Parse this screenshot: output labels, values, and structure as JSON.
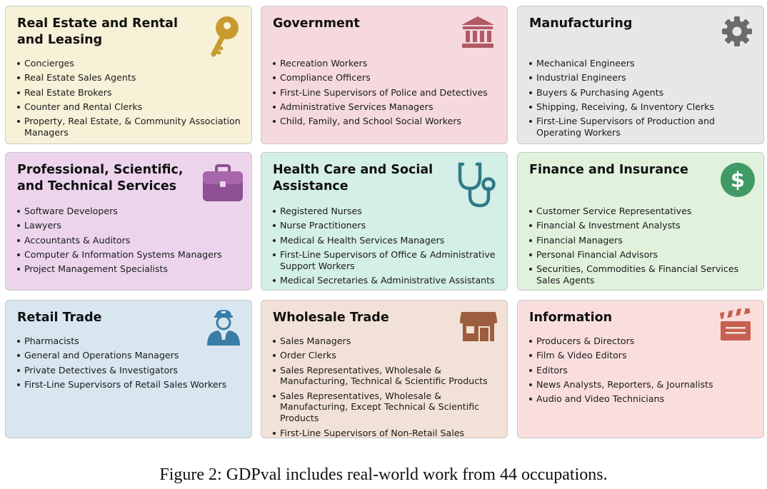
{
  "cards": [
    {
      "title": "Real Estate and Rental and Leasing",
      "icon": "key-icon",
      "background": "#f7f1d8",
      "occupations": [
        "Concierges",
        "Real Estate Sales Agents",
        "Real Estate Brokers",
        "Counter and Rental Clerks",
        "Property, Real Estate, & Community Association Managers"
      ]
    },
    {
      "title": "Government",
      "icon": "government-building-icon",
      "background": "#f5d9dd",
      "occupations": [
        "Recreation Workers",
        "Compliance Officers",
        "First-Line Supervisors of Police and Detectives",
        "Administrative Services Managers",
        "Child, Family, and School Social Workers"
      ]
    },
    {
      "title": "Manufacturing",
      "icon": "gear-icon",
      "background": "#e7e7e7",
      "occupations": [
        "Mechanical Engineers",
        "Industrial Engineers",
        "Buyers & Purchasing Agents",
        "Shipping, Receiving, & Inventory Clerks",
        "First-Line Supervisors of Production and Operating Workers"
      ]
    },
    {
      "title": "Professional, Scientific, and Technical Services",
      "icon": "briefcase-icon",
      "background": "#ecd5ec",
      "occupations": [
        "Software Developers",
        "Lawyers",
        "Accountants & Auditors",
        "Computer & Information Systems Managers",
        "Project Management Specialists"
      ]
    },
    {
      "title": "Health Care and Social Assistance",
      "icon": "stethoscope-icon",
      "background": "#d4eee8",
      "occupations": [
        "Registered Nurses",
        "Nurse Practitioners",
        "Medical & Health Services Managers",
        "First-Line Supervisors of Office & Administrative Support Workers",
        "Medical Secretaries & Administrative Assistants"
      ]
    },
    {
      "title": "Finance and Insurance",
      "icon": "dollar-coin-icon",
      "background": "#e0f1dc",
      "occupations": [
        "Customer Service Representatives",
        "Financial & Investment Analysts",
        "Financial Managers",
        "Personal Financial Advisors",
        "Securities, Commodities & Financial Services Sales Agents"
      ]
    },
    {
      "title": "Retail Trade",
      "icon": "clerk-person-icon",
      "background": "#d7e6ef",
      "occupations": [
        "Pharmacists",
        "General and Operations Managers",
        "Private Detectives & Investigators",
        "First-Line Supervisors of Retail Sales Workers"
      ]
    },
    {
      "title": "Wholesale Trade",
      "icon": "storefront-icon",
      "background": "#f2e1d6",
      "occupations": [
        "Sales Managers",
        "Order Clerks",
        "Sales Representatives, Wholesale & Manufacturing, Technical & Scientific Products",
        "Sales Representatives, Wholesale & Manufacturing, Except Technical & Scientific Products",
        "First-Line Supervisors of Non-Retail Sales Workers"
      ]
    },
    {
      "title": "Information",
      "icon": "clapperboard-icon",
      "background": "#fadede",
      "occupations": [
        "Producers & Directors",
        "Film & Video Editors",
        "Editors",
        "News Analysts, Reporters, & Journalists",
        "Audio and Video Technicians"
      ]
    }
  ],
  "caption": "Figure 2: GDPval includes real-world work from 44 occupations."
}
